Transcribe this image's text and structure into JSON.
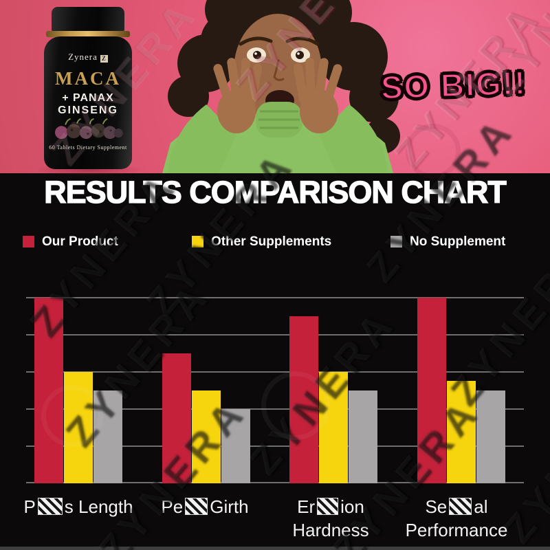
{
  "watermark": {
    "text": "ZYNERA"
  },
  "hero": {
    "background_color": "#e8607e",
    "burst_text": "SO BIG!!",
    "burst_color": "#f4538c",
    "product": {
      "brand": "Zynera",
      "logo_glyph": "Z",
      "name_line1": "MACA",
      "name_line2": "+ PANAX",
      "name_line3": "GINSENG",
      "subtitle": "60 Tablets Dietary Supplement",
      "accent_gold": "#c9a050"
    }
  },
  "results": {
    "title": "RESULTS COMPARISON CHART",
    "background_color": "#0b0909"
  },
  "chart_data": {
    "type": "bar",
    "title": "RESULTS COMPARISON CHART",
    "categories": [
      {
        "visible_prefix": "P",
        "censored": true,
        "visible_suffix": "s Length",
        "line2": ""
      },
      {
        "visible_prefix": "Pe",
        "censored": true,
        "visible_suffix": "Girth",
        "line2": ""
      },
      {
        "visible_prefix": "Er",
        "censored": true,
        "visible_suffix": "ion",
        "line2": "Hardness"
      },
      {
        "visible_prefix": "Se",
        "censored": true,
        "visible_suffix": "al",
        "line2": "Performance"
      }
    ],
    "series": [
      {
        "name": "Our Product",
        "color": "#c5213a",
        "values": [
          100,
          70,
          90,
          100
        ]
      },
      {
        "name": "Other Supplements",
        "color": "#f6d40e",
        "values": [
          60,
          50,
          60,
          55
        ]
      },
      {
        "name": "No Supplement",
        "color": "#a7a5a6",
        "values": [
          50,
          40,
          50,
          50
        ]
      }
    ],
    "xlabel": "",
    "ylabel": "",
    "ylim": [
      0,
      100
    ],
    "units_per_gridline": 20,
    "y_ticks_visible": false,
    "grid": true,
    "gridline_color": "#6f6f6f",
    "legend_position": "top"
  }
}
